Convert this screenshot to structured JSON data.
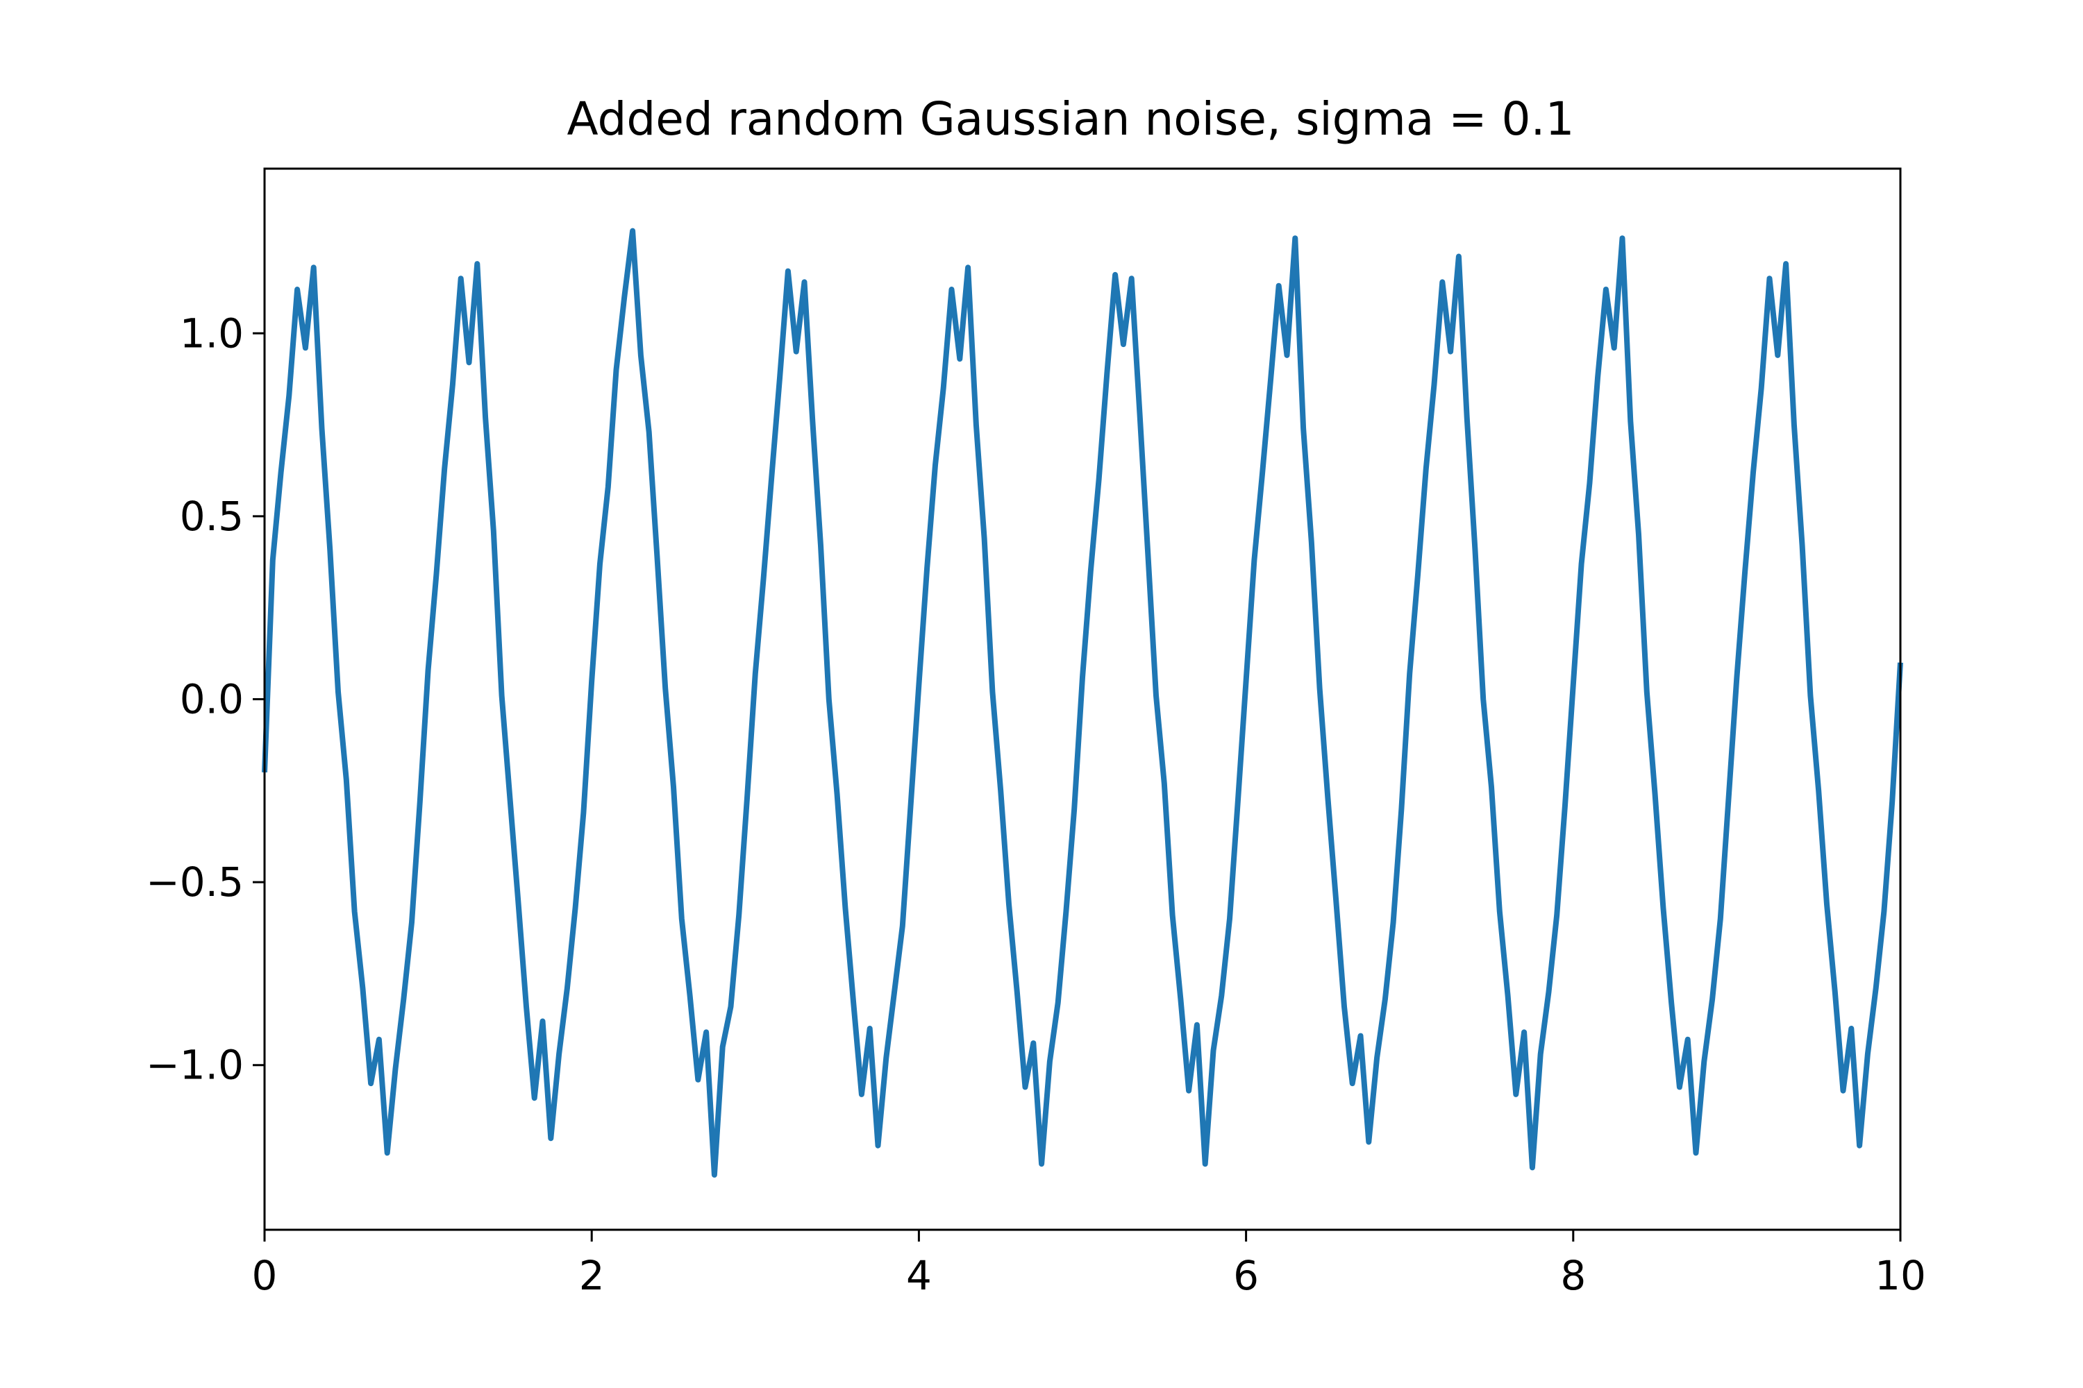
{
  "chart_data": {
    "type": "line",
    "title": "Added random Gaussian noise, sigma = 0.1",
    "xlabel": "",
    "ylabel": "",
    "xlim": [
      0,
      10
    ],
    "ylim": [
      -1.45,
      1.45
    ],
    "grid": false,
    "legend": "none",
    "x_ticks": [
      0,
      2,
      4,
      6,
      8,
      10
    ],
    "x_tick_labels": [
      "0",
      "2",
      "4",
      "6",
      "8",
      "10"
    ],
    "y_ticks": [
      -1.0,
      -0.5,
      0.0,
      0.5,
      1.0
    ],
    "y_tick_labels": [
      "−1.0",
      "−0.5",
      "0.0",
      "0.5",
      "1.0"
    ],
    "series": [
      {
        "color": "#1f77b4",
        "x": [
          0.0,
          0.05,
          0.1,
          0.15,
          0.2,
          0.25,
          0.3,
          0.35,
          0.4,
          0.45,
          0.5,
          0.55,
          0.6,
          0.65,
          0.7,
          0.75,
          0.8,
          0.85,
          0.9,
          0.95,
          1.0,
          1.05,
          1.1,
          1.15,
          1.2,
          1.25,
          1.3,
          1.35,
          1.4,
          1.45,
          1.5,
          1.55,
          1.6,
          1.65,
          1.7,
          1.75,
          1.8,
          1.85,
          1.9,
          1.95,
          2.0,
          2.05,
          2.1,
          2.15,
          2.2,
          2.25,
          2.3,
          2.35,
          2.4,
          2.45,
          2.5,
          2.55,
          2.6,
          2.65,
          2.7,
          2.75,
          2.8,
          2.85,
          2.9,
          2.95,
          3.0,
          3.05,
          3.1,
          3.15,
          3.2,
          3.25,
          3.3,
          3.35,
          3.4,
          3.45,
          3.5,
          3.55,
          3.6,
          3.65,
          3.7,
          3.75,
          3.8,
          3.85,
          3.9,
          3.95,
          4.0,
          4.05,
          4.1,
          4.15,
          4.2,
          4.25,
          4.3,
          4.35,
          4.4,
          4.45,
          4.5,
          4.55,
          4.6,
          4.65,
          4.7,
          4.75,
          4.8,
          4.85,
          4.9,
          4.95,
          5.0,
          5.05,
          5.1,
          5.15,
          5.2,
          5.25,
          5.3,
          5.35,
          5.4,
          5.45,
          5.5,
          5.55,
          5.6,
          5.65,
          5.7,
          5.75,
          5.8,
          5.85,
          5.9,
          5.95,
          6.0,
          6.05,
          6.1,
          6.15,
          6.2,
          6.25,
          6.3,
          6.35,
          6.4,
          6.45,
          6.5,
          6.55,
          6.6,
          6.65,
          6.7,
          6.75,
          6.8,
          6.85,
          6.9,
          6.95,
          7.0,
          7.05,
          7.1,
          7.15,
          7.2,
          7.25,
          7.3,
          7.35,
          7.4,
          7.45,
          7.5,
          7.55,
          7.6,
          7.65,
          7.7,
          7.75,
          7.8,
          7.85,
          7.9,
          7.95,
          8.0,
          8.05,
          8.1,
          8.15,
          8.2,
          8.25,
          8.3,
          8.35,
          8.4,
          8.45,
          8.5,
          8.55,
          8.6,
          8.65,
          8.7,
          8.75,
          8.8,
          8.85,
          8.9,
          8.95,
          9.0,
          9.05,
          9.1,
          9.15,
          9.2,
          9.25,
          9.3,
          9.35,
          9.4,
          9.45,
          9.5,
          9.55,
          9.6,
          9.65,
          9.7,
          9.75,
          9.8,
          9.85,
          9.9,
          9.95,
          10.0
        ],
        "y": [
          -0.2,
          0.38,
          0.62,
          0.83,
          1.12,
          0.96,
          1.18,
          0.74,
          0.41,
          0.02,
          -0.22,
          -0.58,
          -0.79,
          -1.05,
          -0.93,
          -1.24,
          -1.01,
          -0.82,
          -0.61,
          -0.28,
          0.08,
          0.34,
          0.63,
          0.86,
          1.15,
          0.92,
          1.19,
          0.77,
          0.46,
          0.01,
          -0.27,
          -0.55,
          -0.84,
          -1.09,
          -0.88,
          -1.2,
          -0.97,
          -0.79,
          -0.57,
          -0.31,
          0.05,
          0.37,
          0.58,
          0.9,
          1.1,
          1.28,
          0.94,
          0.73,
          0.39,
          0.03,
          -0.24,
          -0.6,
          -0.81,
          -1.04,
          -0.91,
          -1.3,
          -0.95,
          -0.84,
          -0.59,
          -0.27,
          0.07,
          0.33,
          0.61,
          0.88,
          1.17,
          0.95,
          1.14,
          0.76,
          0.42,
          0.0,
          -0.26,
          -0.57,
          -0.83,
          -1.08,
          -0.9,
          -1.22,
          -0.98,
          -0.8,
          -0.62,
          -0.29,
          0.04,
          0.36,
          0.64,
          0.85,
          1.12,
          0.93,
          1.18,
          0.75,
          0.44,
          0.02,
          -0.25,
          -0.56,
          -0.8,
          -1.06,
          -0.94,
          -1.27,
          -0.99,
          -0.83,
          -0.58,
          -0.3,
          0.06,
          0.35,
          0.6,
          0.89,
          1.16,
          0.97,
          1.15,
          0.78,
          0.4,
          0.01,
          -0.23,
          -0.59,
          -0.82,
          -1.07,
          -0.89,
          -1.27,
          -0.96,
          -0.81,
          -0.6,
          -0.28,
          0.05,
          0.38,
          0.62,
          0.87,
          1.13,
          0.94,
          1.26,
          0.74,
          0.43,
          0.03,
          -0.27,
          -0.55,
          -0.84,
          -1.05,
          -0.92,
          -1.21,
          -0.98,
          -0.82,
          -0.61,
          -0.3,
          0.07,
          0.34,
          0.63,
          0.86,
          1.14,
          0.95,
          1.21,
          0.77,
          0.41,
          0.0,
          -0.24,
          -0.58,
          -0.81,
          -1.08,
          -0.91,
          -1.28,
          -0.97,
          -0.8,
          -0.59,
          -0.29,
          0.04,
          0.37,
          0.59,
          0.88,
          1.12,
          0.96,
          1.26,
          0.76,
          0.45,
          0.02,
          -0.26,
          -0.57,
          -0.83,
          -1.06,
          -0.93,
          -1.24,
          -0.99,
          -0.82,
          -0.6,
          -0.27,
          0.06,
          0.35,
          0.62,
          0.85,
          1.15,
          0.94,
          1.19,
          0.75,
          0.42,
          0.01,
          -0.25,
          -0.56,
          -0.8,
          -1.07,
          -0.9,
          -1.22,
          -0.97,
          -0.79,
          -0.58,
          -0.28,
          0.1
        ]
      }
    ]
  }
}
